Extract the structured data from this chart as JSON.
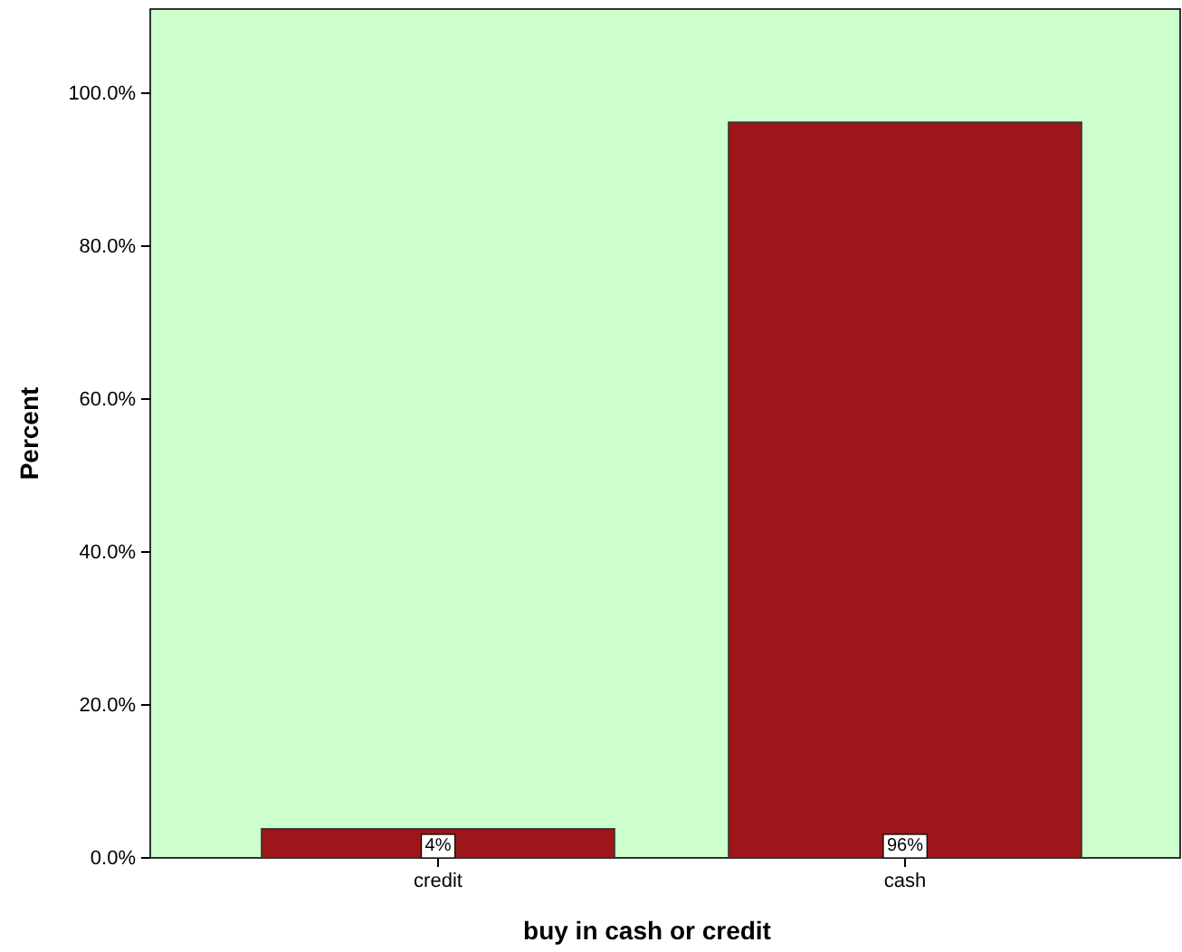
{
  "chart_data": {
    "type": "bar",
    "xlabel": "buy in cash or credit",
    "ylabel": "Percent",
    "categories": [
      "credit",
      "cash"
    ],
    "values": [
      3.8,
      96.2
    ],
    "value_labels": [
      "4%",
      "96%"
    ],
    "color": "#9e1619",
    "ylim": [
      0,
      111
    ],
    "yticks": [
      {
        "value": 0,
        "label": "0.0%"
      },
      {
        "value": 20,
        "label": "20.0%"
      },
      {
        "value": 40,
        "label": "40.0%"
      },
      {
        "value": 60,
        "label": "60.0%"
      },
      {
        "value": 80,
        "label": "80.0%"
      },
      {
        "value": 100,
        "label": "100.0%"
      }
    ],
    "grid": false
  }
}
